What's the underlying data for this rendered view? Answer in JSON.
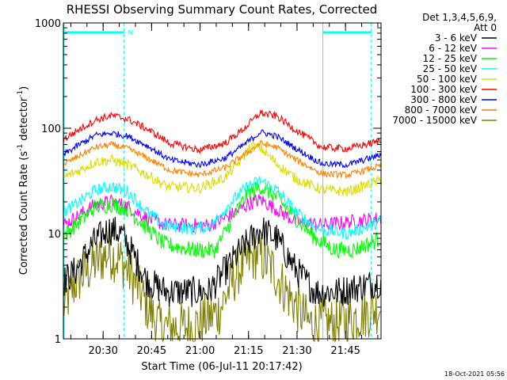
{
  "chart_data": {
    "type": "line",
    "title": "RHESSI Observing Summary Count Rates, Corrected",
    "xlabel": "Start Time (06-Jul-11 20:17:42)",
    "ylabel_main": "Corrected Count Rate (s",
    "ylabel_sup1": "-1",
    "ylabel_mid": " detector",
    "ylabel_sup2": "-1",
    "ylabel_end": ")",
    "y_scale": "log",
    "ylim": [
      1,
      1000
    ],
    "xlim": [
      "20:17:42",
      "21:56:00"
    ],
    "xticks": [
      "20:30",
      "20:45",
      "21:00",
      "21:15",
      "21:30",
      "21:45"
    ],
    "yticks": [
      "1",
      "10",
      "100",
      "1000"
    ],
    "legend_header": [
      "Det 1,3,4,5,6,9,",
      "Att 0"
    ],
    "legend_position": "right",
    "timestamp": "18-Oct-2021 05:56",
    "night_marker_label": "N",
    "night_markers": [
      {
        "start": "20:17:42",
        "end": "20:36:30"
      },
      {
        "start": "21:38:00",
        "end": "21:53:00"
      }
    ],
    "series": [
      {
        "name": "3 - 6 keV",
        "color": "#000000",
        "profile": [
          [
            0,
            3.5
          ],
          [
            4,
            4.5
          ],
          [
            9,
            8
          ],
          [
            14,
            11
          ],
          [
            18,
            10
          ],
          [
            22,
            6
          ],
          [
            26,
            3.5
          ],
          [
            32,
            2.8
          ],
          [
            45,
            2.8
          ],
          [
            55,
            7
          ],
          [
            61,
            11
          ],
          [
            66,
            9
          ],
          [
            72,
            4.5
          ],
          [
            78,
            2.8
          ],
          [
            85,
            2.8
          ],
          [
            93,
            3.2
          ],
          [
            98.3,
            3.5
          ]
        ],
        "noise": 0.15
      },
      {
        "name": "6 - 12 keV",
        "color": "#ff00ff",
        "profile": [
          [
            0,
            12
          ],
          [
            5,
            15
          ],
          [
            10,
            19
          ],
          [
            15,
            20
          ],
          [
            20,
            18
          ],
          [
            26,
            14
          ],
          [
            32,
            12
          ],
          [
            45,
            12
          ],
          [
            52,
            15
          ],
          [
            57,
            19
          ],
          [
            61,
            21
          ],
          [
            66,
            17
          ],
          [
            72,
            13
          ],
          [
            80,
            12
          ],
          [
            98.3,
            14
          ]
        ],
        "noise": 0.07
      },
      {
        "name": "12 - 25 keV",
        "color": "#00ff00",
        "profile": [
          [
            0,
            9.5
          ],
          [
            5,
            13
          ],
          [
            10,
            18
          ],
          [
            15,
            19
          ],
          [
            20,
            17
          ],
          [
            25,
            12
          ],
          [
            31,
            8
          ],
          [
            40,
            7
          ],
          [
            47,
            7
          ],
          [
            53,
            15
          ],
          [
            57,
            24
          ],
          [
            61,
            28
          ],
          [
            66,
            22
          ],
          [
            72,
            14
          ],
          [
            78,
            9
          ],
          [
            84,
            7
          ],
          [
            90,
            7
          ],
          [
            98.3,
            9
          ]
        ],
        "noise": 0.08
      },
      {
        "name": "25 - 50 keV",
        "color": "#00ffff",
        "profile": [
          [
            0,
            16
          ],
          [
            5,
            20
          ],
          [
            10,
            26
          ],
          [
            15,
            28
          ],
          [
            20,
            25
          ],
          [
            25,
            17
          ],
          [
            31,
            12
          ],
          [
            40,
            11
          ],
          [
            46,
            12
          ],
          [
            52,
            20
          ],
          [
            57,
            28
          ],
          [
            61,
            32
          ],
          [
            66,
            26
          ],
          [
            72,
            16
          ],
          [
            79,
            11
          ],
          [
            88,
            10
          ],
          [
            98.3,
            13
          ]
        ],
        "noise": 0.06
      },
      {
        "name": "50 - 100 keV",
        "color": "#dddd00",
        "profile": [
          [
            0,
            34
          ],
          [
            5,
            40
          ],
          [
            10,
            48
          ],
          [
            15,
            50
          ],
          [
            20,
            45
          ],
          [
            26,
            36
          ],
          [
            32,
            28
          ],
          [
            42,
            27
          ],
          [
            50,
            34
          ],
          [
            55,
            50
          ],
          [
            58,
            68
          ],
          [
            61,
            65
          ],
          [
            66,
            46
          ],
          [
            72,
            33
          ],
          [
            80,
            26
          ],
          [
            88,
            25
          ],
          [
            98.3,
            32
          ]
        ],
        "noise": 0.05
      },
      {
        "name": "100 - 300 keV",
        "color": "#ff0000",
        "profile": [
          [
            0,
            78
          ],
          [
            5,
            98
          ],
          [
            10,
            120
          ],
          [
            15,
            132
          ],
          [
            20,
            122
          ],
          [
            26,
            98
          ],
          [
            33,
            72
          ],
          [
            42,
            62
          ],
          [
            50,
            72
          ],
          [
            56,
            100
          ],
          [
            61,
            140
          ],
          [
            66,
            130
          ],
          [
            72,
            96
          ],
          [
            80,
            66
          ],
          [
            88,
            64
          ],
          [
            98.3,
            76
          ]
        ],
        "noise": 0.035
      },
      {
        "name": "300 - 800 keV",
        "color": "#0000ff",
        "profile": [
          [
            0,
            56
          ],
          [
            5,
            70
          ],
          [
            10,
            86
          ],
          [
            15,
            90
          ],
          [
            20,
            84
          ],
          [
            26,
            68
          ],
          [
            33,
            50
          ],
          [
            42,
            45
          ],
          [
            50,
            52
          ],
          [
            56,
            70
          ],
          [
            61,
            92
          ],
          [
            66,
            84
          ],
          [
            72,
            64
          ],
          [
            80,
            46
          ],
          [
            88,
            45
          ],
          [
            98.3,
            56
          ]
        ],
        "noise": 0.03
      },
      {
        "name": "800 - 7000 keV",
        "color": "#ff8000",
        "profile": [
          [
            0,
            45
          ],
          [
            5,
            55
          ],
          [
            10,
            66
          ],
          [
            15,
            70
          ],
          [
            20,
            64
          ],
          [
            26,
            52
          ],
          [
            33,
            40
          ],
          [
            42,
            36
          ],
          [
            50,
            42
          ],
          [
            56,
            56
          ],
          [
            61,
            72
          ],
          [
            66,
            66
          ],
          [
            72,
            50
          ],
          [
            80,
            37
          ],
          [
            88,
            36
          ],
          [
            98.3,
            44
          ]
        ],
        "noise": 0.03
      },
      {
        "name": "7000 - 15000 keV",
        "color": "#808000",
        "profile": [
          [
            0,
            2
          ],
          [
            4,
            3.5
          ],
          [
            9,
            5
          ],
          [
            14,
            6.5
          ],
          [
            18,
            5.5
          ],
          [
            22,
            3.5
          ],
          [
            26,
            2
          ],
          [
            30,
            1.3
          ],
          [
            40,
            1.3
          ],
          [
            48,
            1.8
          ],
          [
            54,
            4.5
          ],
          [
            60,
            6.5
          ],
          [
            65,
            4.5
          ],
          [
            70,
            2.5
          ],
          [
            76,
            1.4
          ],
          [
            85,
            1.4
          ],
          [
            98.3,
            2
          ]
        ],
        "noise": 0.25
      }
    ]
  }
}
